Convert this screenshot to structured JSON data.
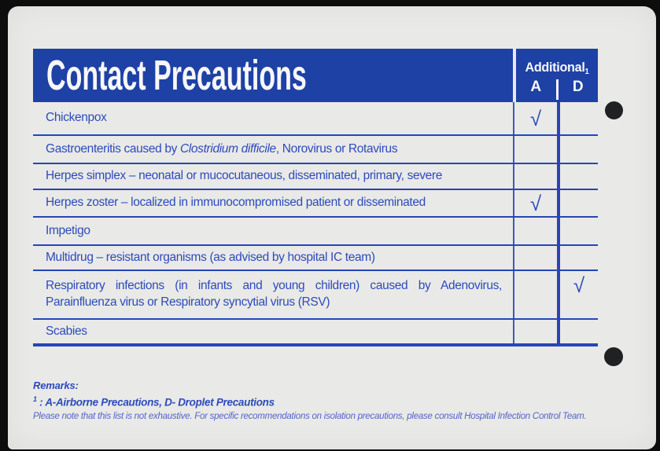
{
  "card": {
    "header": {
      "title": "Contact Precautions",
      "additional_label": "Additional",
      "additional_sup": "1",
      "col_a": "A",
      "col_d": "D"
    },
    "check_glyph": "√",
    "rows": [
      {
        "segments": [
          {
            "text": "Chickenpox"
          }
        ],
        "a": true,
        "d": false
      },
      {
        "segments": [
          {
            "text": "Gastroenteritis caused by "
          },
          {
            "text": "Clostridium difficile",
            "italic": true
          },
          {
            "text": ", Norovirus or Rotavirus"
          }
        ],
        "a": false,
        "d": false
      },
      {
        "segments": [
          {
            "text": "Herpes simplex – neonatal or mucocutaneous, disseminated, primary, severe"
          }
        ],
        "a": false,
        "d": false
      },
      {
        "segments": [
          {
            "text": "Herpes zoster – localized in immunocompromised patient or disseminated"
          }
        ],
        "a": true,
        "d": false
      },
      {
        "segments": [
          {
            "text": "Impetigo"
          }
        ],
        "a": false,
        "d": false
      },
      {
        "segments": [
          {
            "text": "Multidrug – resistant organisms (as advised by hospital IC team)"
          }
        ],
        "a": false,
        "d": false
      },
      {
        "lines": [
          {
            "segments": [
              {
                "text": "Respiratory infections (in infants and young children) caused by Adenovirus,"
              }
            ],
            "justify": true
          },
          {
            "segments": [
              {
                "text": "Parainfluenza virus or Respiratory syncytial virus (RSV)"
              }
            ],
            "justify": false
          }
        ],
        "a": false,
        "d": true,
        "check_align": "top"
      },
      {
        "segments": [
          {
            "text": "Scabies"
          }
        ],
        "a": false,
        "d": false
      }
    ],
    "remarks": {
      "heading": "Remarks:",
      "footnote_sup": "1",
      "footnote": " : A-Airborne Precautions, D- Droplet Precautions",
      "note": "Please note that this list is not exhaustive. For specific recommendations on isolation precautions, please consult Hospital Infection Control Team."
    },
    "colors": {
      "scan_bg": "#0c0d0c",
      "card_bg": "#e9e9e7",
      "header_blue": "#1e41a6",
      "line_blue": "#2646b8",
      "line_thin_blue": "#4058c2",
      "text_blue": "#2c4bbc",
      "note_blue": "#5064c6",
      "hole_black": "#1f2123",
      "white": "#f7f7f9"
    }
  }
}
